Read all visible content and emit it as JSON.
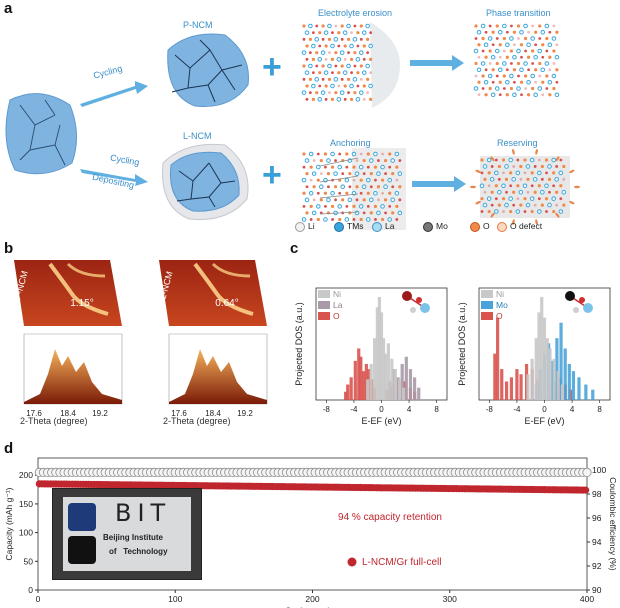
{
  "panels": {
    "a": "a",
    "b": "b",
    "c": "c",
    "d": "d"
  },
  "panel_a": {
    "labels": {
      "p_ncm": "P-NCM",
      "l_ncm": "L-NCM",
      "cycling_top": "Cycling",
      "cycling_bottom": "Cycling",
      "depositing": "Depositing",
      "electrolyte_erosion": "Electrolyte erosion",
      "phase_transition": "Phase transition",
      "anchoring": "Anchoring",
      "reserving": "Reserving"
    },
    "legend": [
      {
        "label": "Li",
        "color": "#f2f2f2",
        "ring": "#9a9a9a"
      },
      {
        "label": "TMs",
        "color": "#39a6dd",
        "ring": "#1f6f9e"
      },
      {
        "label": "La",
        "color": "#a8dcef",
        "ring": "#3a8fc9"
      },
      {
        "label": "Mo",
        "color": "#777777",
        "ring": "#333333"
      },
      {
        "label": "O",
        "color": "#f08a4b",
        "ring": "#c0541b"
      },
      {
        "label": "O defect",
        "color": "#fbd8c0",
        "ring": "#e07a40"
      }
    ]
  },
  "panel_b": {
    "maps": [
      {
        "name": "P-NCM",
        "angle": "1.15°",
        "ticks": [
          "17.6",
          "18.4",
          "19.2"
        ],
        "xlabel": "2-Theta (degree)"
      },
      {
        "name": "L-NCM",
        "angle": "0.64°",
        "ticks": [
          "17.6",
          "18.4",
          "19.2"
        ],
        "xlabel": "2-Theta (degree)"
      }
    ]
  },
  "chart_data": [
    {
      "type": "bar",
      "title": "",
      "xlabel": "E-E_F (eV)",
      "ylabel": "Projected DOS (a.u.)",
      "legend": [
        {
          "name": "Ni",
          "color": "#c8c8c8"
        },
        {
          "name": "La",
          "color": "#a89aa8"
        },
        {
          "name": "O",
          "color": "#d9534f"
        }
      ],
      "xticks": [
        "-8",
        "-4",
        "0",
        "4",
        "8"
      ],
      "xlim": [
        -9.5,
        9.5
      ],
      "series": [
        {
          "name": "O",
          "x": [
            -5.2,
            -4.9,
            -4.4,
            -3.8,
            -3.3,
            -3.0,
            -2.6,
            -2.2,
            -1.8,
            -1.4,
            -1.0,
            0.8,
            1.6,
            2.5,
            3.4,
            4.2,
            4.8
          ],
          "values": [
            0.08,
            0.15,
            0.22,
            0.38,
            0.5,
            0.42,
            0.28,
            0.35,
            0.3,
            0.2,
            0.12,
            0.1,
            0.14,
            0.2,
            0.18,
            0.12,
            0.08
          ]
        },
        {
          "name": "La",
          "x": [
            1.2,
            1.8,
            2.4,
            3.0,
            3.6,
            4.2,
            4.8,
            5.4
          ],
          "values": [
            0.18,
            0.3,
            0.22,
            0.35,
            0.42,
            0.3,
            0.22,
            0.12
          ]
        },
        {
          "name": "Ni",
          "x": [
            -2.0,
            -1.5,
            -1.0,
            -0.6,
            -0.3,
            0.0,
            0.3,
            0.6,
            1.0,
            1.5,
            2.0,
            2.6,
            3.2
          ],
          "values": [
            0.2,
            0.35,
            0.6,
            0.9,
            1.0,
            0.85,
            0.6,
            0.45,
            0.55,
            0.4,
            0.3,
            0.2,
            0.12
          ]
        }
      ]
    },
    {
      "type": "bar",
      "title": "",
      "xlabel": "E-E_F (eV)",
      "ylabel": "Projected DOS (a.u.)",
      "legend": [
        {
          "name": "Ni",
          "color": "#c8c8c8"
        },
        {
          "name": "Mo",
          "color": "#4aa3d8"
        },
        {
          "name": "O",
          "color": "#d9534f"
        }
      ],
      "xticks": [
        "-8",
        "-4",
        "0",
        "4",
        "8"
      ],
      "xlim": [
        -9.5,
        9.5
      ],
      "series": [
        {
          "name": "O",
          "x": [
            -7.2,
            -6.8,
            -6.2,
            -5.5,
            -4.8,
            -4.0,
            -3.4,
            -2.6,
            -1.8,
            -1.0,
            0.6,
            1.4,
            2.2,
            3.0,
            3.8
          ],
          "values": [
            0.45,
            0.8,
            0.3,
            0.18,
            0.22,
            0.3,
            0.25,
            0.35,
            0.3,
            0.2,
            0.15,
            0.18,
            0.22,
            0.15,
            0.1
          ]
        },
        {
          "name": "Mo",
          "x": [
            -1.2,
            -0.6,
            0.0,
            0.6,
            1.2,
            1.8,
            2.4,
            3.0,
            3.6,
            4.2,
            5.0,
            6.0,
            7.0
          ],
          "values": [
            0.15,
            0.3,
            0.45,
            0.55,
            0.38,
            0.6,
            0.75,
            0.5,
            0.35,
            0.28,
            0.22,
            0.15,
            0.1
          ]
        },
        {
          "name": "Ni",
          "x": [
            -2.4,
            -1.8,
            -1.2,
            -0.8,
            -0.4,
            0.0,
            0.4,
            0.8,
            1.4,
            2.0,
            2.6
          ],
          "values": [
            0.25,
            0.4,
            0.6,
            0.85,
            1.0,
            0.8,
            0.6,
            0.5,
            0.4,
            0.28,
            0.15
          ]
        }
      ]
    },
    {
      "type": "scatter",
      "title": "",
      "xlabel": "Cycle number",
      "ylabel": "Capacity (mAh g⁻¹)",
      "y2label": "Coulombic efficiency (%)",
      "xlim": [
        0,
        400
      ],
      "ylim": [
        0,
        230
      ],
      "y2lim": [
        90,
        101
      ],
      "xticks": [
        "0",
        "100",
        "200",
        "300",
        "400"
      ],
      "yticks": [
        "0",
        "50",
        "100",
        "150",
        "200"
      ],
      "y2ticks": [
        "90",
        "92",
        "94",
        "96",
        "98",
        "100"
      ],
      "annotation": "94 % capacity retention",
      "legend": [
        {
          "name": "L-NCM/Gr full-cell",
          "color": "#c0262d"
        }
      ],
      "series": [
        {
          "name": "Capacity",
          "start": 185,
          "end": 174,
          "count": 400
        },
        {
          "name": "Coulombic efficiency",
          "value": 99.8,
          "count": 400
        }
      ],
      "inset": {
        "logo_text": "BIT",
        "line1": "Beijing Institute",
        "line2": "of   Technology"
      }
    }
  ]
}
